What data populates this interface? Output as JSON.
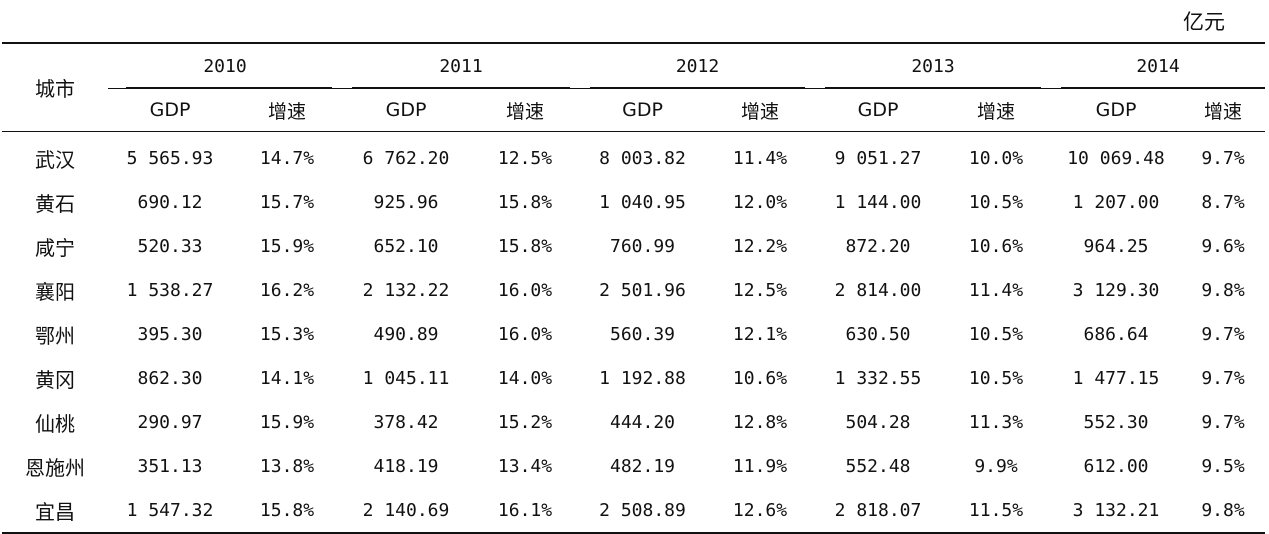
{
  "unit": "亿元",
  "header": {
    "city_label": "城市",
    "years": [
      "2010",
      "2011",
      "2012",
      "2013",
      "2014"
    ],
    "gdp_label": "GDP",
    "growth_label": "增速"
  },
  "rows": [
    {
      "city": "武汉",
      "v": [
        "5 565.93",
        "14.7%",
        "6 762.20",
        "12.5%",
        "8 003.82",
        "11.4%",
        "9 051.27",
        "10.0%",
        "10 069.48",
        "9.7%"
      ]
    },
    {
      "city": "黄石",
      "v": [
        "690.12",
        "15.7%",
        "925.96",
        "15.8%",
        "1 040.95",
        "12.0%",
        "1 144.00",
        "10.5%",
        "1 207.00",
        "8.7%"
      ]
    },
    {
      "city": "咸宁",
      "v": [
        "520.33",
        "15.9%",
        "652.10",
        "15.8%",
        "760.99",
        "12.2%",
        "872.20",
        "10.6%",
        "964.25",
        "9.6%"
      ]
    },
    {
      "city": "襄阳",
      "v": [
        "1 538.27",
        "16.2%",
        "2 132.22",
        "16.0%",
        "2 501.96",
        "12.5%",
        "2 814.00",
        "11.4%",
        "3 129.30",
        "9.8%"
      ]
    },
    {
      "city": "鄂州",
      "v": [
        "395.30",
        "15.3%",
        "490.89",
        "16.0%",
        "560.39",
        "12.1%",
        "630.50",
        "10.5%",
        "686.64",
        "9.7%"
      ]
    },
    {
      "city": "黄冈",
      "v": [
        "862.30",
        "14.1%",
        "1 045.11",
        "14.0%",
        "1 192.88",
        "10.6%",
        "1 332.55",
        "10.5%",
        "1 477.15",
        "9.7%"
      ]
    },
    {
      "city": "仙桃",
      "v": [
        "290.97",
        "15.9%",
        "378.42",
        "15.2%",
        "444.20",
        "12.8%",
        "504.28",
        "11.3%",
        "552.30",
        "9.7%"
      ]
    },
    {
      "city": "恩施州",
      "v": [
        "351.13",
        "13.8%",
        "418.19",
        "13.4%",
        "482.19",
        "11.9%",
        "552.48",
        "9.9%",
        "612.00",
        "9.5%"
      ]
    },
    {
      "city": "宜昌",
      "v": [
        "1 547.32",
        "15.8%",
        "2 140.69",
        "16.1%",
        "2 508.89",
        "12.6%",
        "2 818.07",
        "11.5%",
        "3 132.21",
        "9.8%"
      ]
    }
  ]
}
